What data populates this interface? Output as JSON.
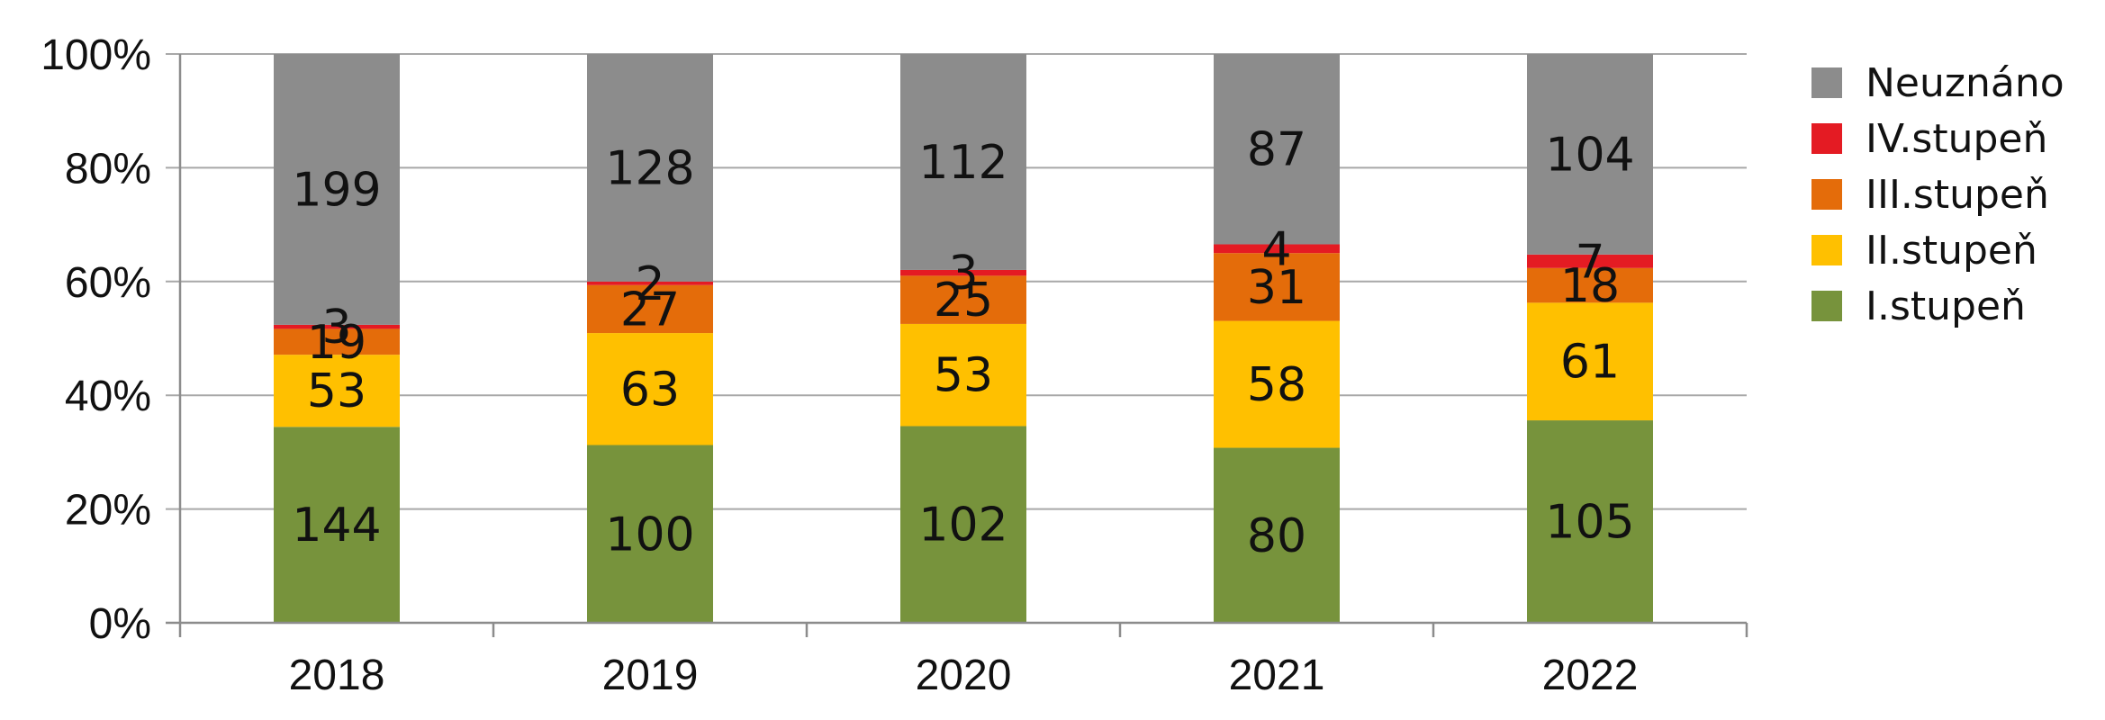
{
  "chart_data": {
    "type": "bar",
    "stacked": "percent",
    "categories": [
      "2018",
      "2019",
      "2020",
      "2021",
      "2022"
    ],
    "series": [
      {
        "name": "I.stupeň",
        "color": "#77933c",
        "values": [
          144,
          100,
          102,
          80,
          105
        ]
      },
      {
        "name": "II.stupeň",
        "color": "#ffc000",
        "values": [
          53,
          63,
          53,
          58,
          61
        ]
      },
      {
        "name": "III.stupeň",
        "color": "#e46c0a",
        "values": [
          19,
          27,
          25,
          31,
          18
        ]
      },
      {
        "name": "IV.stupeň",
        "color": "#e41b23",
        "values": [
          3,
          2,
          3,
          4,
          7
        ]
      },
      {
        "name": "Neuznáno",
        "color": "#8c8c8c",
        "values": [
          199,
          128,
          112,
          87,
          104
        ]
      }
    ],
    "legend_order": [
      "Neuznáno",
      "IV.stupeň",
      "III.stupeň",
      "II.stupeň",
      "I.stupeň"
    ],
    "y_ticks": [
      "0%",
      "20%",
      "40%",
      "60%",
      "80%",
      "100%"
    ],
    "ylim": [
      0,
      100
    ],
    "grid": true,
    "legend_position": "right",
    "title": "",
    "xlabel": "",
    "ylabel": ""
  }
}
